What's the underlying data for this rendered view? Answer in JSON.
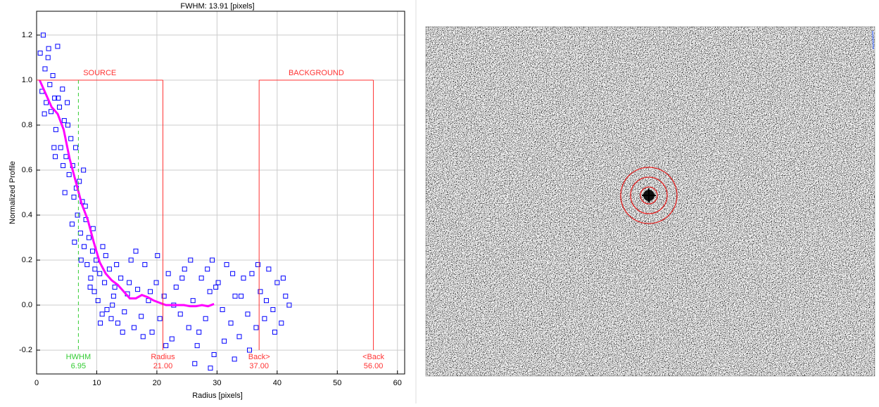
{
  "chart_data": {
    "type": "scatter",
    "title": "FWHM: 13.91 [pixels]",
    "xlabel": "Radius [pixels]",
    "ylabel": "Normalized Profile",
    "xlim": [
      0,
      61.2
    ],
    "ylim": [
      -0.306,
      1.306
    ],
    "xticks": [
      0,
      10,
      20,
      30,
      40,
      50,
      60
    ],
    "yticks": [
      -0.2,
      {
        "value": 0,
        "label": "0.0"
      },
      0.2,
      0.4,
      0.6,
      0.8,
      {
        "value": 1,
        "label": "1.0"
      },
      1.2
    ],
    "grid": true,
    "series": [
      {
        "type": "scatter",
        "marker": "square",
        "color": "#0000ff",
        "x": [
          0.6,
          0.9,
          1.1,
          1.4,
          1.6,
          1.9,
          2.2,
          2.4,
          2.7,
          3.0,
          3.2,
          3.5,
          3.8,
          4.0,
          4.3,
          4.6,
          4.9,
          5.1,
          5.4,
          5.7,
          6.0,
          6.2,
          6.5,
          6.8,
          7.1,
          7.3,
          7.6,
          7.9,
          8.2,
          8.4,
          8.7,
          9.0,
          9.3,
          9.6,
          9.9,
          10.2,
          10.5,
          10.9,
          11.3,
          11.7,
          12.1,
          12.6,
          13.0,
          13.5,
          14.0,
          14.6,
          15.1,
          15.7,
          16.2,
          16.8,
          17.4,
          18.0,
          18.6,
          19.2,
          19.9,
          20.5,
          21.2,
          21.9,
          22.5,
          23.2,
          23.9,
          24.6,
          25.3,
          26.0,
          26.7,
          27.4,
          28.1,
          28.8,
          29.5,
          30.2,
          30.9,
          31.6,
          32.3,
          33.0,
          33.7,
          34.4,
          35.1,
          35.8,
          36.5,
          37.2,
          37.9,
          38.6,
          39.3,
          40.0,
          40.7,
          41.4,
          42.0,
          1.3,
          2.0,
          2.9,
          3.6,
          4.4,
          5.2,
          5.9,
          6.6,
          7.4,
          8.1,
          8.9,
          9.7,
          10.6,
          11.5,
          12.4,
          13.3,
          14.3,
          15.4,
          16.5,
          17.7,
          18.9,
          20.1,
          21.5,
          22.8,
          24.2,
          25.6,
          27.0,
          28.4,
          29.8,
          31.2,
          32.6,
          34.0,
          35.4,
          36.8,
          38.2,
          39.6,
          41.0,
          3.1,
          4.7,
          6.3,
          7.8,
          9.4,
          11.0,
          12.8,
          26.3,
          28.9,
          29.2,
          32.9
        ],
        "values": [
          1.12,
          0.95,
          1.2,
          1.05,
          0.9,
          1.1,
          0.98,
          0.86,
          1.02,
          0.92,
          0.78,
          1.15,
          0.88,
          0.7,
          0.96,
          0.82,
          0.66,
          0.9,
          0.58,
          0.74,
          0.62,
          0.48,
          0.7,
          0.4,
          0.55,
          0.32,
          0.46,
          0.26,
          0.38,
          0.18,
          0.3,
          0.12,
          0.24,
          0.06,
          0.2,
          0.02,
          0.14,
          -0.04,
          0.1,
          -0.02,
          0.16,
          0.0,
          0.08,
          -0.08,
          0.12,
          -0.03,
          0.05,
          0.2,
          -0.1,
          0.07,
          -0.05,
          0.18,
          0.02,
          -0.12,
          0.1,
          -0.06,
          0.04,
          0.14,
          -0.15,
          0.08,
          -0.04,
          0.16,
          -0.1,
          0.02,
          -0.18,
          0.12,
          -0.06,
          0.06,
          -0.22,
          0.1,
          -0.02,
          0.18,
          -0.08,
          0.04,
          -0.14,
          0.12,
          -0.04,
          0.14,
          -0.1,
          0.06,
          -0.06,
          0.16,
          -0.02,
          0.1,
          -0.08,
          0.04,
          0.0,
          0.85,
          1.14,
          0.7,
          0.92,
          0.62,
          0.8,
          0.36,
          0.52,
          0.2,
          0.44,
          0.08,
          0.16,
          -0.08,
          0.22,
          -0.06,
          0.18,
          -0.12,
          0.1,
          0.24,
          -0.14,
          0.06,
          0.22,
          -0.18,
          0.0,
          0.12,
          0.2,
          -0.12,
          0.16,
          0.08,
          -0.16,
          0.14,
          0.04,
          -0.2,
          0.18,
          0.02,
          -0.12,
          0.12,
          0.66,
          0.5,
          0.28,
          0.6,
          0.34,
          0.26,
          0.04,
          -0.26,
          -0.28,
          0.2,
          -0.24
        ]
      },
      {
        "type": "line",
        "color": "#ff00ff",
        "x": [
          0.5,
          1.5,
          2.5,
          3.5,
          4.5,
          5.5,
          6.5,
          7.5,
          8.5,
          9.5,
          10.5,
          11.5,
          12.5,
          13.5,
          14.5,
          15.5,
          16.5,
          17.5,
          18.5,
          19.5,
          20.5,
          21.5,
          22.5,
          23.5,
          24.5,
          25.5,
          26.5,
          27.5,
          28.5,
          29.5
        ],
        "values": [
          1.0,
          0.94,
          0.88,
          0.85,
          0.78,
          0.65,
          0.55,
          0.45,
          0.38,
          0.28,
          0.19,
          0.14,
          0.11,
          0.09,
          0.06,
          0.03,
          0.03,
          0.045,
          0.035,
          0.02,
          0.01,
          0.0,
          0.0,
          0.0,
          0.0,
          -0.005,
          -0.005,
          0.0,
          -0.005,
          0.005
        ]
      }
    ],
    "markers": [
      {
        "name": "HWHM",
        "x": 6.95,
        "color": "#33cc33",
        "dashed": true
      },
      {
        "name": "Radius",
        "x": {
          "value": 21,
          "label": "21.00"
        },
        "color": "#ff3333"
      },
      {
        "name": "Back>",
        "x": {
          "value": 37,
          "label": "37.00"
        },
        "color": "#ff3333"
      },
      {
        "name": "<Back",
        "x": {
          "value": 56,
          "label": "56.00"
        },
        "color": "#ff3333"
      }
    ],
    "regions": [
      {
        "label": "SOURCE",
        "from": 0,
        "to": 21,
        "level": 1,
        "color": "#ff3333"
      },
      {
        "label": "BACKGROUND",
        "from": 37,
        "to": 56,
        "level": 1,
        "color": "#ff3333"
      }
    ]
  }
}
